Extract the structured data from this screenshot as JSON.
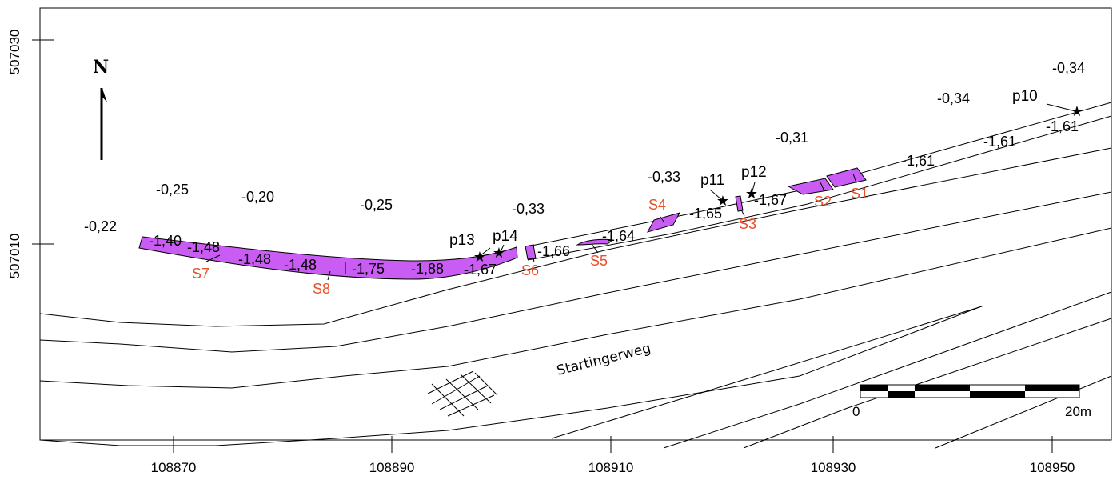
{
  "axes": {
    "x_ticks": [
      "108870",
      "108890",
      "108910",
      "108930",
      "108950"
    ],
    "y_ticks": [
      "507030",
      "507010"
    ]
  },
  "north_label": "N",
  "road_label": "Startingerweg",
  "scale_bar": {
    "start": "0",
    "end": "20m"
  },
  "surface_values": [
    "-0,22",
    "-0,25",
    "-0,20",
    "-0,25",
    "-0,33",
    "-0,33",
    "-0,31",
    "-0,34",
    "-0,34"
  ],
  "depth_values": [
    "-1,40",
    "-1,48",
    "-1,48",
    "-1,48",
    "-1,75",
    "-1,88",
    "-1,67",
    "-1,66",
    "-1,64",
    "-1,65",
    "-1,67",
    "-1,61",
    "-1,61",
    "-1,61"
  ],
  "sections": [
    "S1",
    "S2",
    "S3",
    "S4",
    "S5",
    "S6",
    "S7",
    "S8"
  ],
  "points": [
    "p10",
    "p11",
    "p12",
    "p13",
    "p14"
  ],
  "colors": {
    "trench_fill": "#c95cf2",
    "section_label": "#e8502a"
  }
}
